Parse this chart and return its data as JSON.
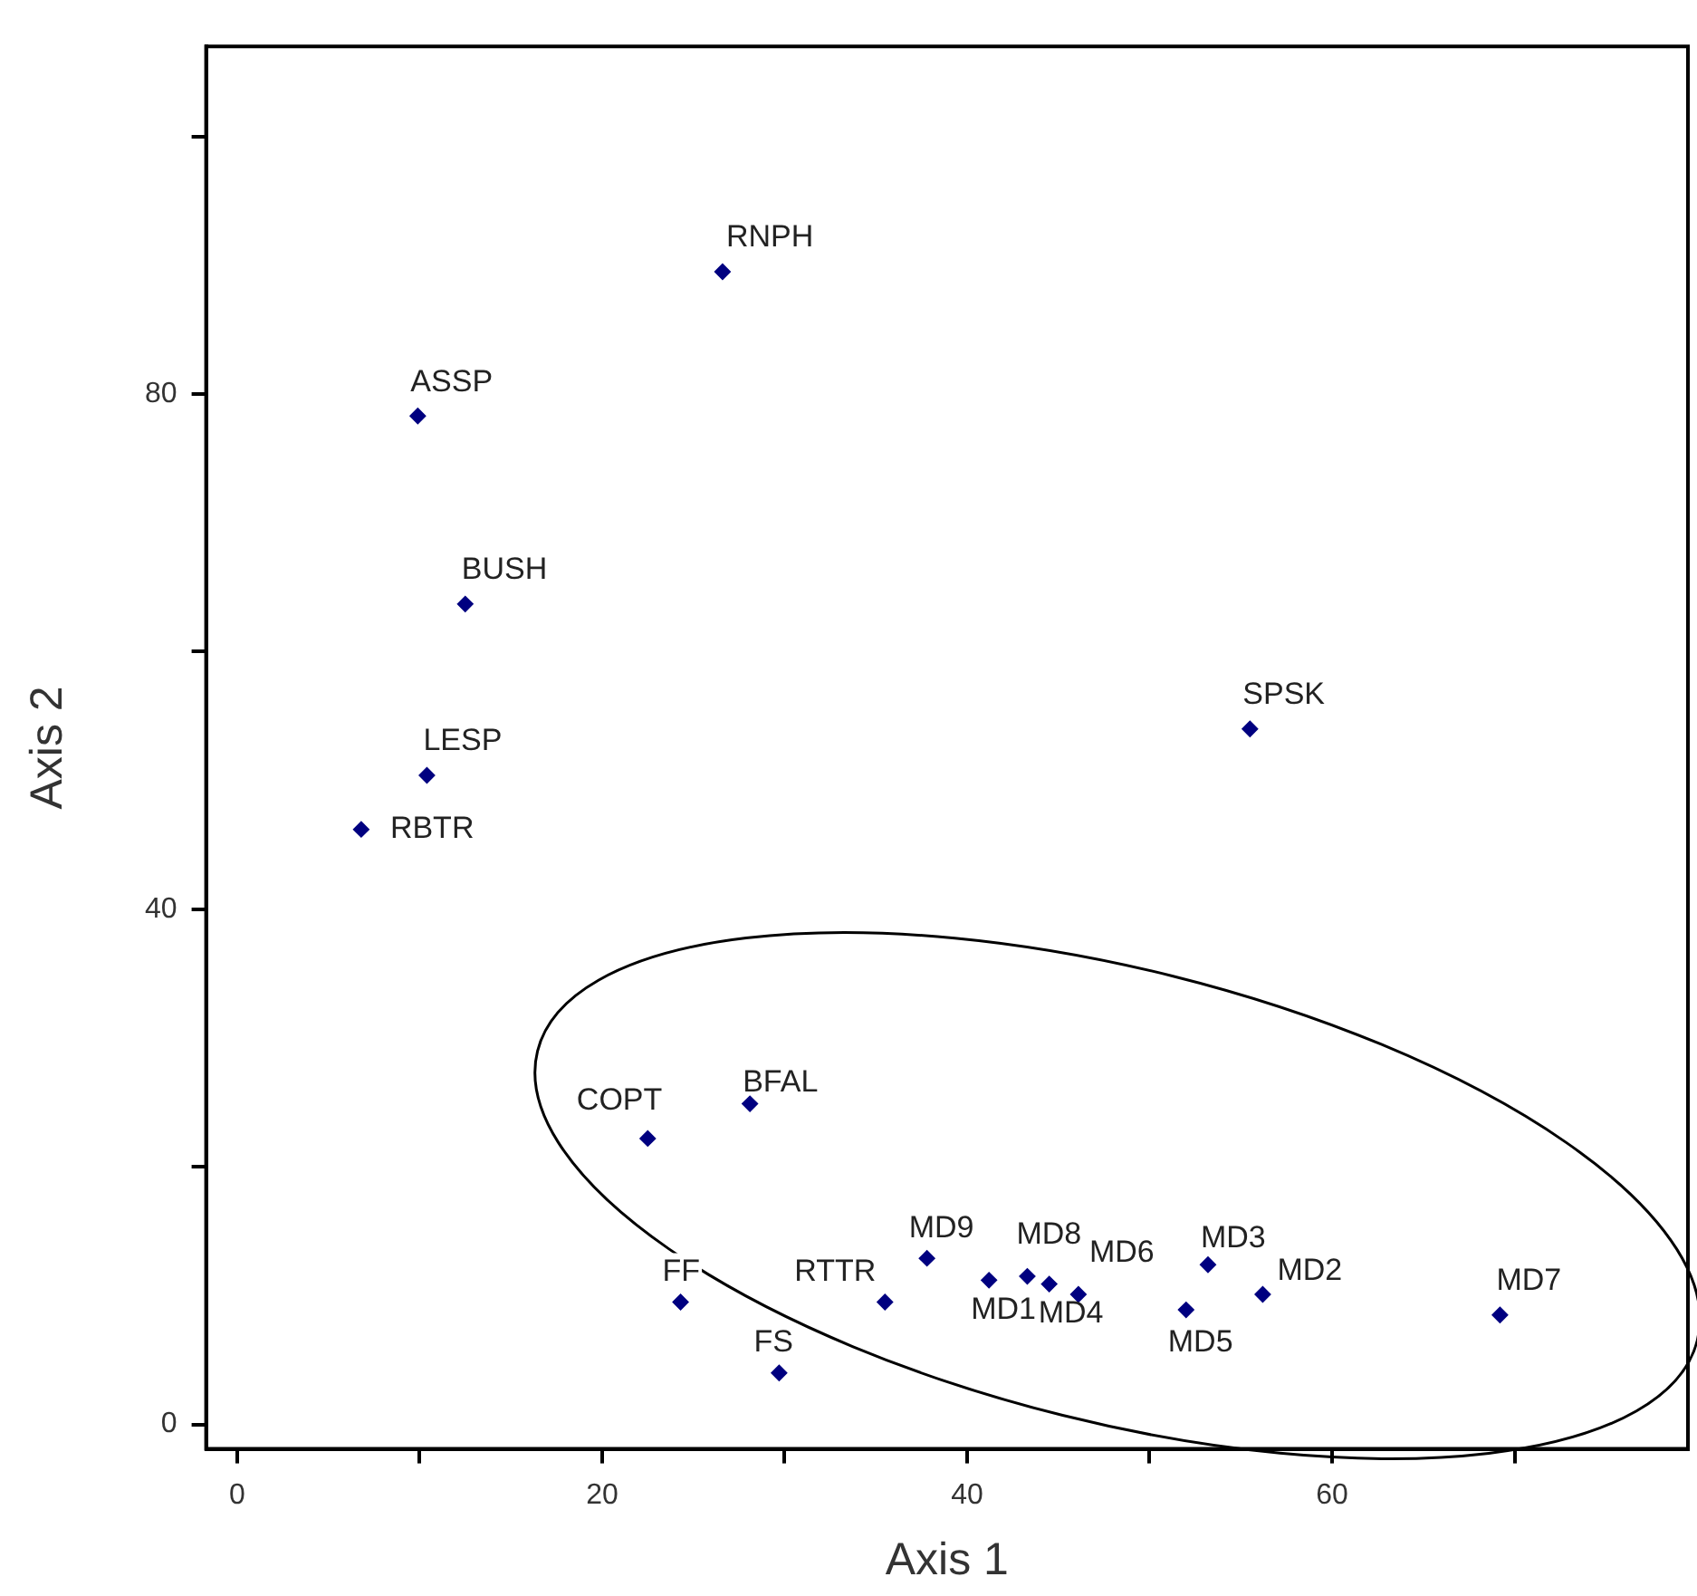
{
  "chart_data": {
    "type": "scatter",
    "xlabel": "Axis 1",
    "ylabel": "Axis 2",
    "xlim": [
      -1.7,
      79.5
    ],
    "ylim": [
      -1.9,
      107
    ],
    "xticks": [
      0,
      {
        "value": 10,
        "label": null
      },
      20,
      {
        "value": 30,
        "label": null
      },
      40,
      {
        "value": 50,
        "label": null
      },
      60,
      {
        "value": 70,
        "label": null
      }
    ],
    "yticks": [
      0,
      {
        "value": 20,
        "label": null
      },
      40,
      {
        "value": 60,
        "label": null
      },
      80,
      {
        "value": 100,
        "label": null
      }
    ],
    "marker": "diamond",
    "grid": false,
    "legend": false,
    "series": [
      {
        "color": "#000080",
        "x": [
          26.6,
          9.9,
          12.5,
          10.4,
          6.8,
          55.5,
          22.5,
          28.1,
          24.3,
          29.7,
          35.5,
          37.8,
          41.2,
          43.3,
          44.5,
          46.1,
          52.0,
          53.2,
          56.2,
          69.2
        ],
        "values": [
          89.5,
          78.3,
          63.7,
          50.4,
          46.2,
          54.0,
          22.2,
          24.9,
          9.5,
          4.0,
          9.5,
          12.9,
          11.2,
          11.5,
          10.9,
          10.1,
          8.9,
          12.4,
          10.1,
          8.5
        ]
      }
    ],
    "annotations": [
      {
        "text": "RNPH",
        "x": 26.6,
        "y": 89.5
      },
      {
        "text": "ASSP",
        "x": 9.9,
        "y": 78.3
      },
      {
        "text": "BUSH",
        "x": 12.5,
        "y": 63.7
      },
      {
        "text": "LESP",
        "x": 10.4,
        "y": 50.4
      },
      {
        "text": "RBTR",
        "x": 6.8,
        "y": 46.2
      },
      {
        "text": "SPSK",
        "x": 55.5,
        "y": 54.0
      },
      {
        "text": "COPT",
        "x": 22.5,
        "y": 22.2
      },
      {
        "text": "BFAL",
        "x": 28.1,
        "y": 24.9
      },
      {
        "text": "FF",
        "x": 24.3,
        "y": 9.5
      },
      {
        "text": "FS",
        "x": 29.7,
        "y": 4.0
      },
      {
        "text": "RTTR",
        "x": 35.5,
        "y": 9.5
      },
      {
        "text": "MD9",
        "x": 37.8,
        "y": 12.9
      },
      {
        "text": "MD1",
        "x": 41.2,
        "y": 11.2
      },
      {
        "text": "MD8",
        "x": 43.3,
        "y": 11.5
      },
      {
        "text": "MD4",
        "x": 44.5,
        "y": 10.9
      },
      {
        "text": "MD6",
        "x": 46.1,
        "y": 10.1
      },
      {
        "text": "MD5",
        "x": 52.0,
        "y": 8.9
      },
      {
        "text": "MD3",
        "x": 53.2,
        "y": 12.4
      },
      {
        "text": "MD2",
        "x": 56.2,
        "y": 10.1
      },
      {
        "text": "MD7",
        "x": 69.2,
        "y": 8.5
      }
    ]
  }
}
